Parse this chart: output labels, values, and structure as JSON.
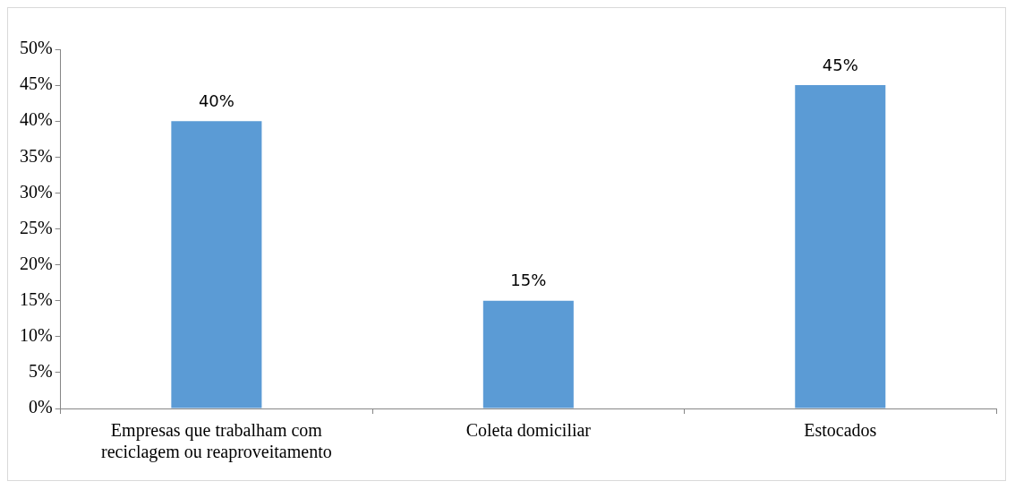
{
  "chart_data": {
    "type": "bar",
    "categories": [
      "Empresas que trabalham com reciclagem ou reaproveitamento",
      "Coleta domiciliar",
      "Estocados"
    ],
    "values": [
      40,
      15,
      45
    ],
    "color": "#5b9bd5",
    "value_labels": [
      "40%",
      "15%",
      "45%"
    ],
    "ylim": [
      0,
      50
    ],
    "yticks": [
      {
        "value": 0,
        "label": "0%"
      },
      {
        "value": 5,
        "label": "5%"
      },
      {
        "value": 10,
        "label": "10%"
      },
      {
        "value": 15,
        "label": "15%"
      },
      {
        "value": 20,
        "label": "20%"
      },
      {
        "value": 25,
        "label": "25%"
      },
      {
        "value": 30,
        "label": "30%"
      },
      {
        "value": 35,
        "label": "35%"
      },
      {
        "value": 40,
        "label": "40%"
      },
      {
        "value": 45,
        "label": "45%"
      },
      {
        "value": 50,
        "label": "50%"
      }
    ],
    "grid": false,
    "legend": false
  }
}
